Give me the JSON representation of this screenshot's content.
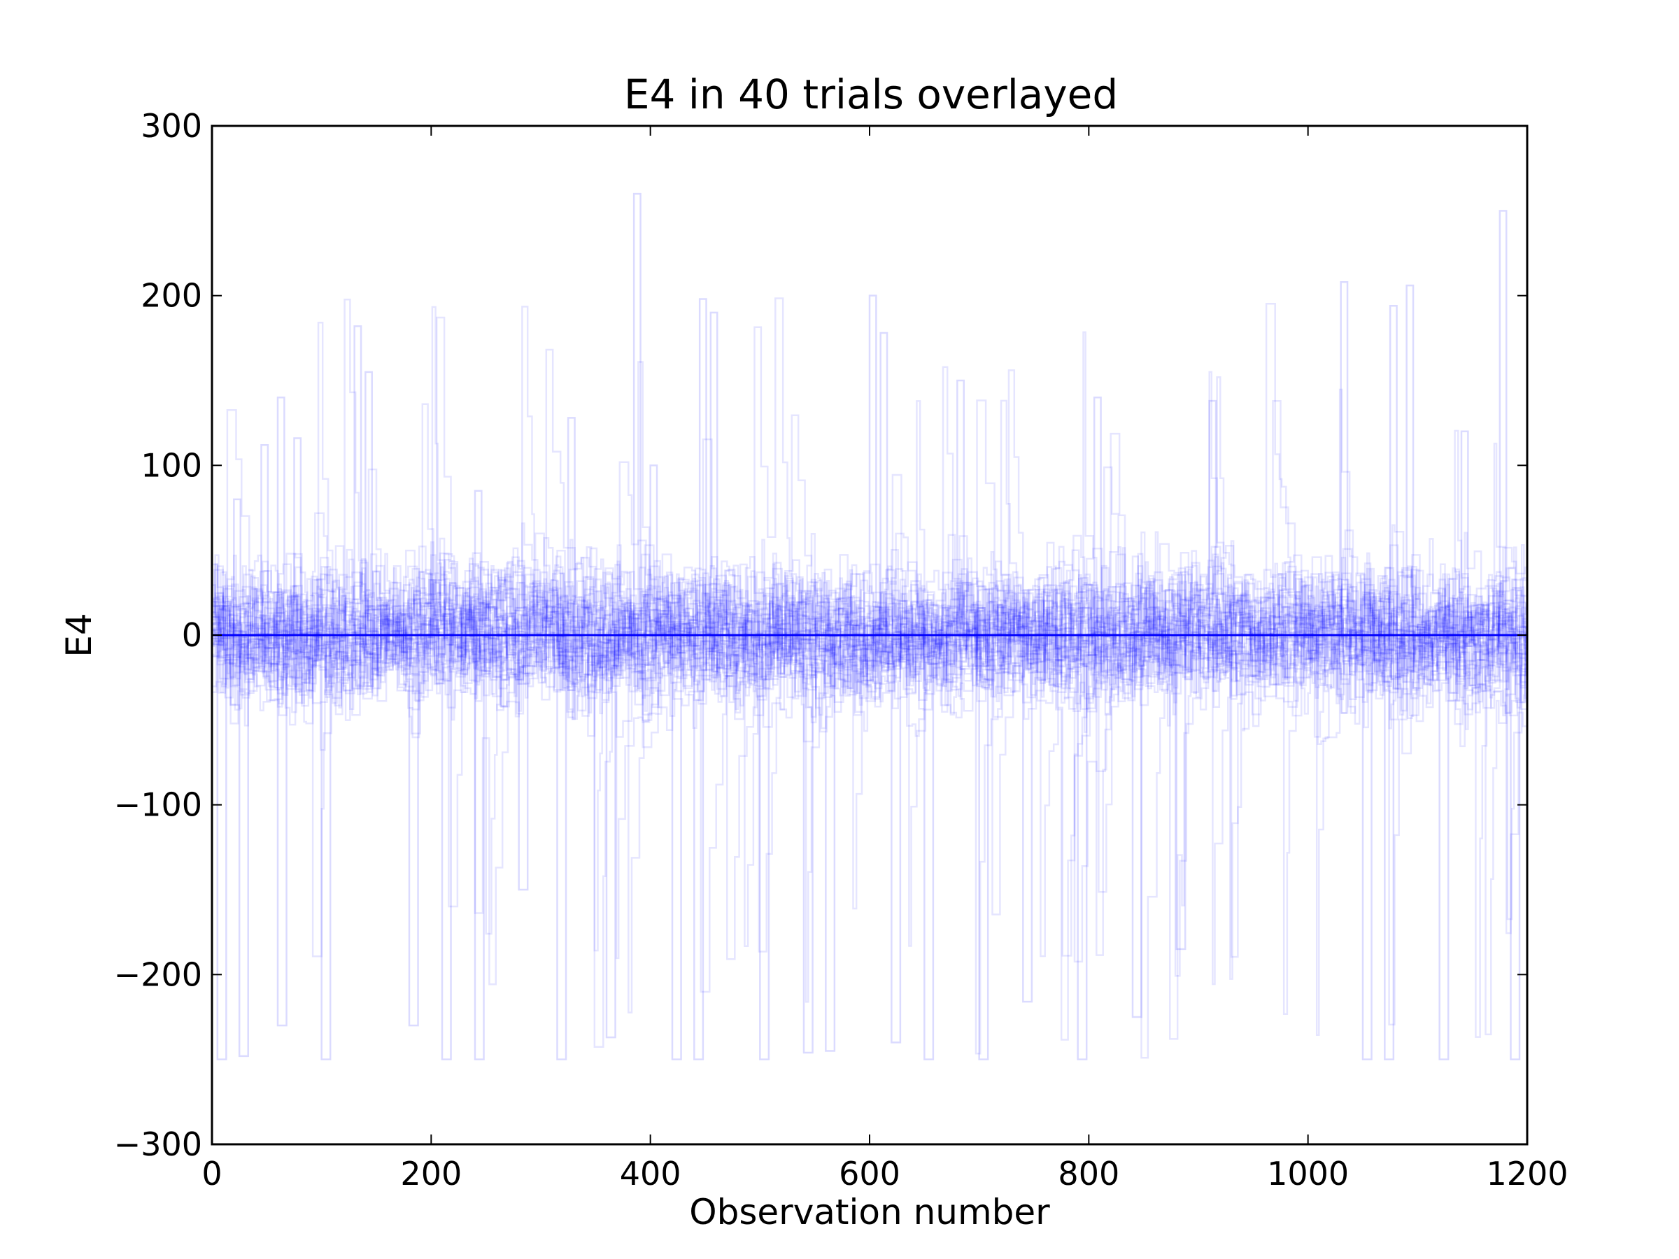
{
  "chart_data": {
    "type": "line",
    "title": "E4 in 40 trials overlayed",
    "xlabel": "Observation number",
    "ylabel": "E4",
    "xlim": [
      0,
      1200
    ],
    "ylim": [
      -300,
      300
    ],
    "x_ticks": [
      0,
      200,
      400,
      600,
      800,
      1000,
      1200
    ],
    "y_ticks": [
      -300,
      -200,
      -100,
      0,
      100,
      200,
      300
    ],
    "x_tick_labels": [
      "0",
      "200",
      "400",
      "600",
      "800",
      "1000",
      "1200"
    ],
    "y_tick_labels": [
      "−300",
      "−200",
      "−100",
      "0",
      "100",
      "200",
      "300"
    ],
    "grid": false,
    "legend": "none",
    "series_count": 40,
    "series_color": "#0000ff",
    "series_opacity": 0.1,
    "mean_line": {
      "y": 0,
      "color": "#0000ff"
    },
    "peaks": [
      {
        "x": 20,
        "y": 80
      },
      {
        "x": 45,
        "y": 112
      },
      {
        "x": 60,
        "y": 140
      },
      {
        "x": 75,
        "y": 116
      },
      {
        "x": 130,
        "y": 182
      },
      {
        "x": 140,
        "y": 155
      },
      {
        "x": 240,
        "y": 85
      },
      {
        "x": 325,
        "y": 128
      },
      {
        "x": 385,
        "y": 260
      },
      {
        "x": 400,
        "y": 100
      },
      {
        "x": 445,
        "y": 198
      },
      {
        "x": 455,
        "y": 190
      },
      {
        "x": 600,
        "y": 200
      },
      {
        "x": 610,
        "y": 178
      },
      {
        "x": 680,
        "y": 150
      },
      {
        "x": 805,
        "y": 140
      },
      {
        "x": 910,
        "y": 138
      },
      {
        "x": 1030,
        "y": 208
      },
      {
        "x": 1075,
        "y": 194
      },
      {
        "x": 1090,
        "y": 206
      },
      {
        "x": 1140,
        "y": 120
      },
      {
        "x": 1175,
        "y": 250
      }
    ],
    "troughs": [
      {
        "x": 5,
        "y": -250
      },
      {
        "x": 25,
        "y": -248
      },
      {
        "x": 60,
        "y": -230
      },
      {
        "x": 100,
        "y": -250
      },
      {
        "x": 180,
        "y": -230
      },
      {
        "x": 210,
        "y": -250
      },
      {
        "x": 240,
        "y": -250
      },
      {
        "x": 280,
        "y": -150
      },
      {
        "x": 315,
        "y": -250
      },
      {
        "x": 360,
        "y": -237
      },
      {
        "x": 420,
        "y": -250
      },
      {
        "x": 440,
        "y": -250
      },
      {
        "x": 500,
        "y": -250
      },
      {
        "x": 540,
        "y": -246
      },
      {
        "x": 560,
        "y": -245
      },
      {
        "x": 620,
        "y": -240
      },
      {
        "x": 650,
        "y": -250
      },
      {
        "x": 700,
        "y": -250
      },
      {
        "x": 740,
        "y": -216
      },
      {
        "x": 790,
        "y": -250
      },
      {
        "x": 840,
        "y": -225
      },
      {
        "x": 880,
        "y": -185
      },
      {
        "x": 1050,
        "y": -250
      },
      {
        "x": 1070,
        "y": -250
      },
      {
        "x": 1120,
        "y": -250
      },
      {
        "x": 1185,
        "y": -250
      }
    ]
  }
}
